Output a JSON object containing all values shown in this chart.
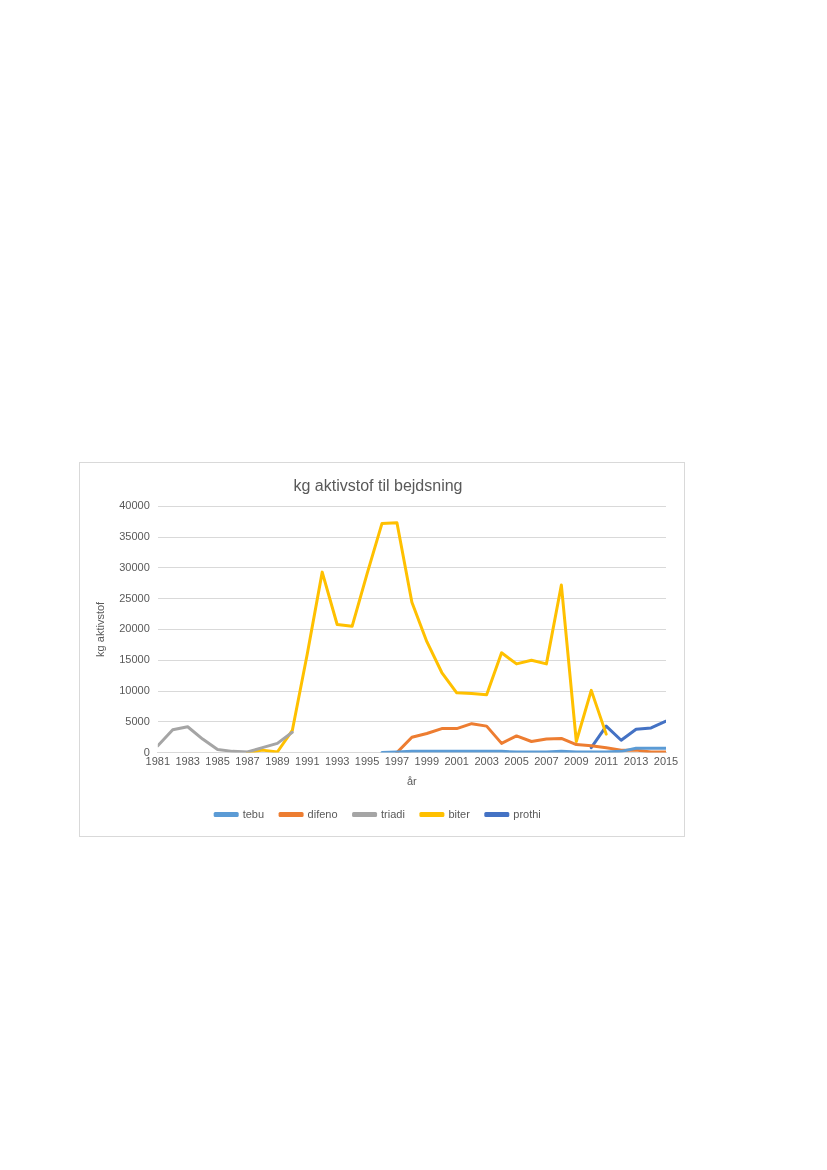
{
  "chart_data": {
    "type": "line",
    "title": "kg aktivstof til bejdsning",
    "xlabel": "år",
    "ylabel": "kg aktivstof",
    "x": [
      1981,
      1982,
      1983,
      1984,
      1985,
      1986,
      1987,
      1988,
      1989,
      1990,
      1991,
      1992,
      1993,
      1994,
      1995,
      1996,
      1997,
      1998,
      1999,
      2000,
      2001,
      2002,
      2003,
      2004,
      2005,
      2006,
      2007,
      2008,
      2009,
      2010,
      2011,
      2012,
      2013,
      2014,
      2015
    ],
    "xlim": [
      1981,
      2015
    ],
    "xticks": [
      1981,
      1983,
      1985,
      1987,
      1989,
      1991,
      1993,
      1995,
      1997,
      1999,
      2001,
      2003,
      2005,
      2007,
      2009,
      2011,
      2013,
      2015
    ],
    "ylim": [
      0,
      40000
    ],
    "yticks": [
      0,
      5000,
      10000,
      15000,
      20000,
      25000,
      30000,
      35000,
      40000
    ],
    "grid": "y",
    "legend": "bottom",
    "marker": "none",
    "line_style": "solid",
    "series": [
      {
        "name": "tebu",
        "color": "#5b9bd5",
        "values": [
          null,
          null,
          null,
          null,
          null,
          null,
          null,
          null,
          null,
          null,
          null,
          null,
          null,
          null,
          null,
          0,
          100,
          200,
          200,
          200,
          200,
          200,
          200,
          200,
          100,
          100,
          100,
          200,
          100,
          100,
          100,
          200,
          700,
          700,
          700
        ]
      },
      {
        "name": "difeno",
        "color": "#ed7d31",
        "values": [
          null,
          null,
          null,
          null,
          null,
          null,
          null,
          null,
          null,
          null,
          null,
          null,
          null,
          null,
          null,
          null,
          0,
          2500,
          3100,
          3900,
          3900,
          4700,
          4300,
          1500,
          2700,
          1800,
          2200,
          2300,
          1300,
          1100,
          800,
          400,
          400,
          100,
          100
        ]
      },
      {
        "name": "triadi",
        "color": "#a5a5a5",
        "values": [
          1100,
          3700,
          4200,
          2200,
          500,
          200,
          100,
          800,
          1500,
          3300,
          null,
          null,
          null,
          null,
          null,
          null,
          null,
          null,
          null,
          null,
          null,
          null,
          null,
          null,
          null,
          null,
          null,
          null,
          null,
          null,
          null,
          null,
          null,
          null,
          null
        ]
      },
      {
        "name": "biter",
        "color": "#ffc000",
        "values": [
          null,
          null,
          null,
          null,
          null,
          null,
          0,
          400,
          100,
          3600,
          16000,
          29300,
          20800,
          20500,
          29000,
          37200,
          37300,
          24400,
          18000,
          13000,
          9700,
          9600,
          9400,
          16200,
          14400,
          15000,
          14400,
          27200,
          1800,
          10100,
          3000,
          null,
          null,
          null,
          null
        ]
      },
      {
        "name": "prothi",
        "color": "#4472c4",
        "values": [
          null,
          null,
          null,
          null,
          null,
          null,
          null,
          null,
          null,
          null,
          null,
          null,
          null,
          null,
          null,
          null,
          null,
          null,
          null,
          null,
          null,
          null,
          null,
          null,
          null,
          null,
          null,
          null,
          null,
          800,
          4300,
          2000,
          3800,
          4000,
          5100
        ]
      }
    ]
  }
}
